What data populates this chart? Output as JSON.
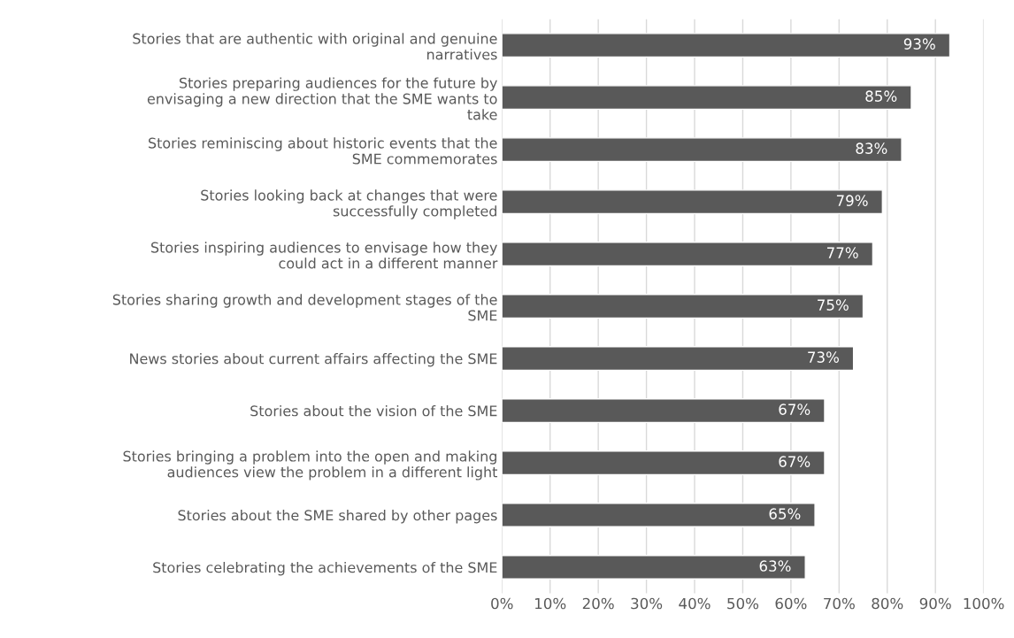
{
  "chart_data": {
    "type": "bar",
    "orientation": "horizontal",
    "categories": [
      "Stories that are authentic with original and genuine narratives",
      "Stories preparing audiences for the future by envisaging a new direction that the SME wants to take",
      "Stories reminiscing about historic events that the SME commemorates",
      "Stories looking back at changes that were successfully completed",
      "Stories inspiring audiences to envisage how they could act in a different manner",
      "Stories sharing growth and development stages of the SME",
      "News stories about current affairs affecting the SME",
      "Stories about the vision of the SME",
      "Stories bringing a problem into the open and making audiences view the problem in a different light",
      "Stories about the SME shared by other pages",
      "Stories celebrating the achievements of the SME"
    ],
    "values": [
      93,
      85,
      83,
      79,
      77,
      75,
      73,
      67,
      67,
      65,
      63
    ],
    "value_labels": [
      "93%",
      "85%",
      "83%",
      "79%",
      "77%",
      "75%",
      "73%",
      "67%",
      "67%",
      "65%",
      "63%"
    ],
    "color": "#595959",
    "xlim": [
      0,
      100
    ],
    "xticks": [
      {
        "value": 0,
        "label": "0%"
      },
      {
        "value": 10,
        "label": "10%"
      },
      {
        "value": 20,
        "label": "20%"
      },
      {
        "value": 30,
        "label": "30%"
      },
      {
        "value": 40,
        "label": "40%"
      },
      {
        "value": 50,
        "label": "50%"
      },
      {
        "value": 60,
        "label": "60%"
      },
      {
        "value": 70,
        "label": "70%"
      },
      {
        "value": 80,
        "label": "80%"
      },
      {
        "value": 90,
        "label": "90%"
      },
      {
        "value": 100,
        "label": "100%"
      }
    ],
    "grid": "x",
    "legend": false
  }
}
